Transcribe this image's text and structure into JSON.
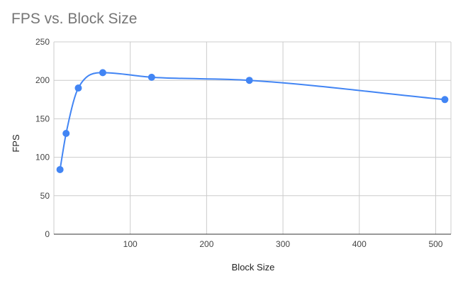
{
  "chart_data": {
    "type": "scatter",
    "title": "FPS vs. Block Size",
    "xlabel": "Block Size",
    "ylabel": "FPS",
    "xlim": [
      0,
      520
    ],
    "ylim": [
      0,
      250
    ],
    "x_ticks": [
      100,
      200,
      300,
      400,
      500
    ],
    "y_ticks": [
      0,
      50,
      100,
      150,
      200,
      250
    ],
    "grid": true,
    "smooth_line": true,
    "series": [
      {
        "x": [
          8,
          16,
          32,
          64,
          128,
          256,
          512
        ],
        "y": [
          84,
          131,
          190,
          210,
          204,
          200,
          175
        ]
      }
    ]
  },
  "colors": {
    "series": "#4285f4",
    "title": "#757575",
    "grid": "#cccccc",
    "baseline": "#333333"
  }
}
